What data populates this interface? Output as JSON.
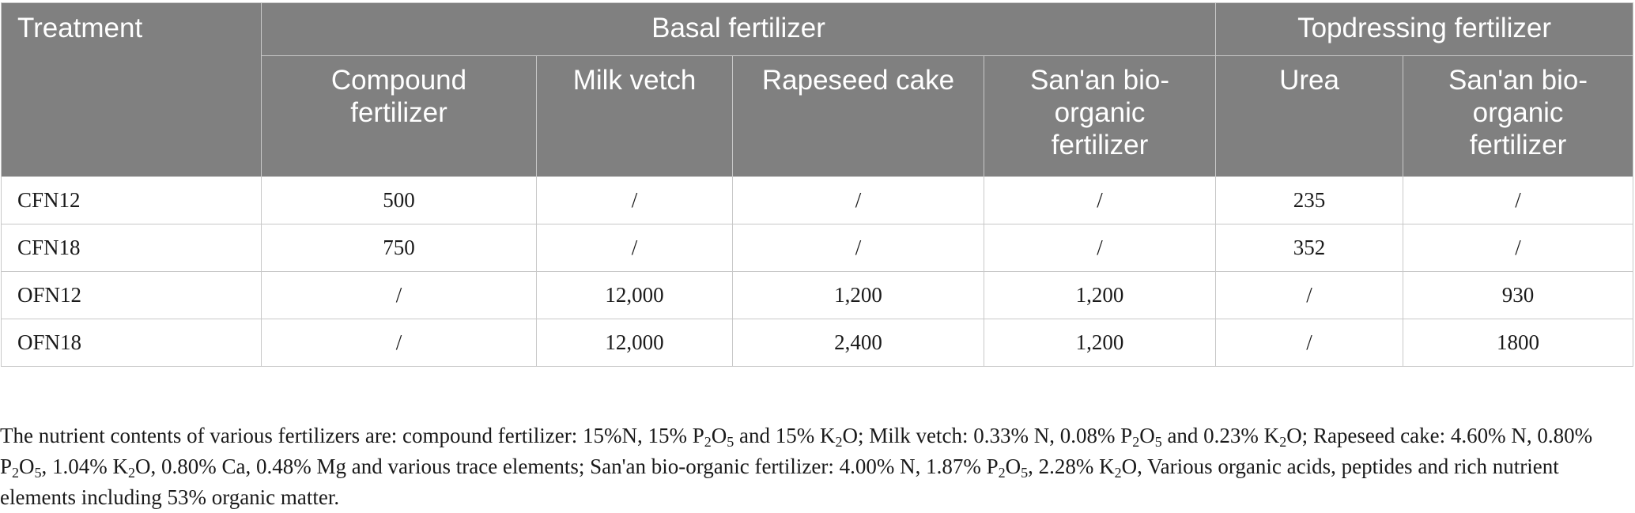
{
  "table": {
    "headers": {
      "treatment": "Treatment",
      "basal_group": "Basal fertilizer",
      "topdressing_group": "Topdressing fertilizer",
      "columns": [
        "Compound fertilizer",
        "Milk vetch",
        "Rapeseed cake",
        "San'an bio-organic fertilizer",
        "Urea",
        "San'an bio-organic fertilizer"
      ]
    },
    "rows": [
      [
        "CFN12",
        "500",
        "/",
        "/",
        "/",
        "235",
        "/"
      ],
      [
        "CFN18",
        "750",
        "/",
        "/",
        "/",
        "352",
        "/"
      ],
      [
        "OFN12",
        "/",
        "12,000",
        "1,200",
        "1,200",
        "/",
        "930"
      ],
      [
        "OFN18",
        "/",
        "12,000",
        "2,400",
        "1,200",
        "/",
        "1800"
      ]
    ]
  },
  "footnote": {
    "t1": "The nutrient contents of various fertilizers are: compound fertilizer: 15%N, 15% P",
    "s1": "2",
    "t2": "O",
    "s2": "5",
    "t3": " and 15% K",
    "s3": "2",
    "t4": "O; Milk vetch: 0.33% N, 0.08% P",
    "s4": "2",
    "t5": "O",
    "s5": "5",
    "t6": " and 0.23% K",
    "s6": "2",
    "t7": "O; Rapeseed cake: 4.60% N, 0.80% P",
    "s7": "2",
    "t8": "O",
    "s8": "5",
    "t9": ", 1.04% K",
    "s9": "2",
    "t10": "O, 0.80% Ca, 0.48% Mg and various trace elements; San'an bio-organic fertilizer: 4.00% N, 1.87% P",
    "s10": "2",
    "t11": "O",
    "s11": "5",
    "t12": ", 2.28% K",
    "s12": "2",
    "t13": "O, Various organic acids, peptides and rich nutrient elements including 53% organic matter."
  },
  "colors": {
    "header_bg": "#808080",
    "header_text": "#ffffff",
    "border": "#c8c8c8",
    "body_text": "#1a1a1a"
  }
}
